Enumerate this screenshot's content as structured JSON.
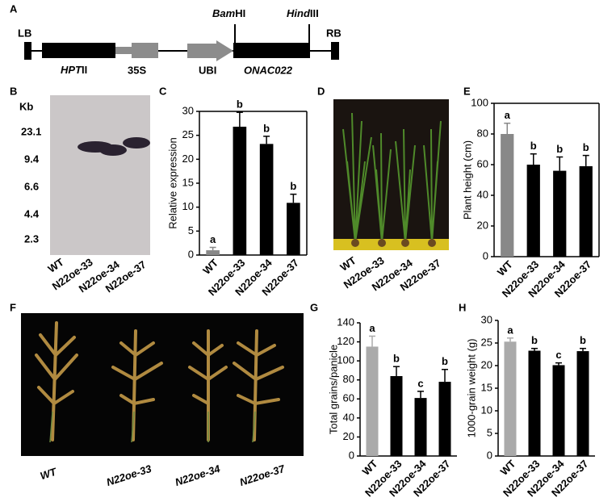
{
  "panel_labels": [
    "A",
    "B",
    "C",
    "D",
    "E",
    "F",
    "G",
    "H"
  ],
  "construct": {
    "left_border": "LB",
    "right_border": "RB",
    "bam": "Bam",
    "bam_suffix": "HI",
    "hind": "Hind",
    "hind_suffix": "III",
    "hpt": "HPT",
    "hpt_suffix": "II",
    "promoter1": "35S",
    "promoter2": "UBI",
    "gene": "ONAC022"
  },
  "blot": {
    "unit": "Kb",
    "markers": [
      "23.1",
      "9.4",
      "6.6",
      "4.4",
      "2.3"
    ],
    "lanes": [
      "WT",
      "N22oe-33",
      "N22oe-34",
      "N22oe-37"
    ]
  },
  "photo_d": {
    "lanes": [
      "WT",
      "N22oe-33",
      "N22oe-34",
      "N22oe-37"
    ]
  },
  "photo_f": {
    "lanes": [
      "WT",
      "N22oe-33",
      "N22oe-34",
      "N22oe-37"
    ]
  },
  "chart_data": [
    {
      "type": "bar",
      "y_label": "Relative expression",
      "categories": [
        "WT",
        "N22oe-33",
        "N22oe-34",
        "N22oe-37"
      ],
      "values": [
        1,
        26.8,
        23.2,
        10.9
      ],
      "errors": [
        0.6,
        3,
        1.6,
        1.8
      ],
      "annotations": [
        "a",
        "b",
        "b",
        "b"
      ],
      "colors": [
        "#888888",
        "#000000",
        "#000000",
        "#000000"
      ],
      "ylim": [
        0,
        30
      ],
      "yticks": [
        0,
        5,
        10,
        15,
        20,
        25,
        30
      ],
      "frame": true
    },
    {
      "type": "bar",
      "y_label": "Plant height (cm)",
      "categories": [
        "WT",
        "N22oe-33",
        "N22oe-34",
        "N22oe-37"
      ],
      "values": [
        80,
        60,
        56,
        59
      ],
      "errors": [
        7,
        7,
        9,
        7
      ],
      "annotations": [
        "a",
        "b",
        "b",
        "b"
      ],
      "colors": [
        "#888888",
        "#000000",
        "#000000",
        "#000000"
      ],
      "ylim": [
        0,
        100
      ],
      "yticks": [
        0,
        20,
        40,
        60,
        80,
        100
      ],
      "frame": true
    },
    {
      "type": "bar",
      "y_label": "Total grains/panicle",
      "categories": [
        "WT",
        "N22oe-33",
        "N22oe-34",
        "N22oe-37"
      ],
      "values": [
        115,
        84,
        61,
        78
      ],
      "errors": [
        11,
        10,
        7,
        13
      ],
      "annotations": [
        "a",
        "b",
        "c",
        "b"
      ],
      "colors": [
        "#aaaaaa",
        "#000000",
        "#000000",
        "#000000"
      ],
      "ylim": [
        0,
        140
      ],
      "yticks": [
        0,
        20,
        40,
        60,
        80,
        100,
        120,
        140
      ],
      "frame": false
    },
    {
      "type": "bar",
      "y_label": "1000-grain weight (g)",
      "categories": [
        "WT",
        "N22oe-33",
        "N22oe-34",
        "N22oe-37"
      ],
      "values": [
        25.3,
        23.3,
        20.1,
        23.2
      ],
      "errors": [
        0.8,
        0.5,
        0.5,
        0.6
      ],
      "annotations": [
        "a",
        "b",
        "c",
        "b"
      ],
      "colors": [
        "#aaaaaa",
        "#000000",
        "#000000",
        "#000000"
      ],
      "ylim": [
        0,
        30
      ],
      "yticks": [
        0,
        5,
        10,
        15,
        20,
        25,
        30
      ],
      "frame": false
    }
  ]
}
